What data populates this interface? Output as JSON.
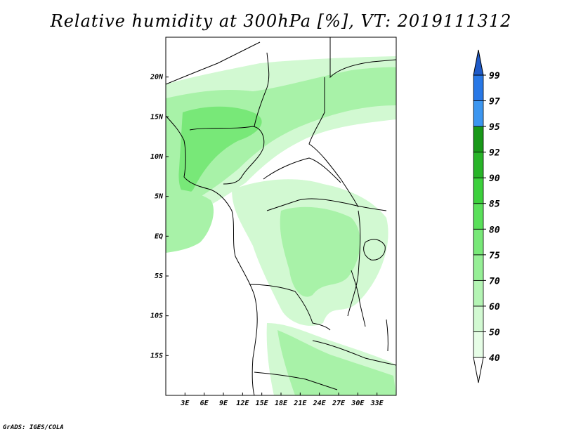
{
  "title": "Relative humidity at 300hPa [%], VT: 2019111312",
  "credit": "GrADS: IGES/COLA",
  "map": {
    "lon_range": [
      0,
      36
    ],
    "lat_range": [
      -20,
      25
    ],
    "lat_ticks": [
      "20N",
      "15N",
      "10N",
      "5N",
      "EQ",
      "5S",
      "10S",
      "15S"
    ],
    "lat_values": [
      20,
      15,
      10,
      5,
      0,
      -5,
      -10,
      -15
    ],
    "lon_ticks": [
      "3E",
      "6E",
      "9E",
      "12E",
      "15E",
      "18E",
      "21E",
      "24E",
      "27E",
      "30E",
      "33E"
    ],
    "lon_values": [
      3,
      6,
      9,
      12,
      15,
      18,
      21,
      24,
      27,
      30,
      33
    ]
  },
  "colorbar": {
    "labels": [
      "40",
      "50",
      "60",
      "70",
      "75",
      "80",
      "85",
      "90",
      "92",
      "95",
      "97",
      "99"
    ],
    "colors": [
      "#ffffff",
      "#e6fde6",
      "#d2f9d2",
      "#b4f4b4",
      "#96ef96",
      "#78e878",
      "#5ae05a",
      "#3cd03c",
      "#28b428",
      "#189818",
      "#3c96f0",
      "#2878e6",
      "#1e5ac8"
    ]
  },
  "field_colors": {
    "light": "#d2f9d2",
    "medium": "#a8f2a8",
    "strong": "#78e878"
  }
}
